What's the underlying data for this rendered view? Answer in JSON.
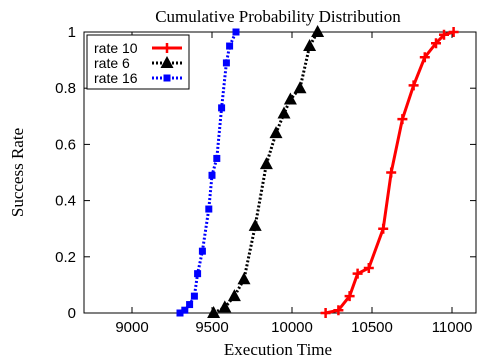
{
  "chart_data": {
    "type": "line",
    "title": "Cumulative Probability Distribution",
    "xlabel": "Execution Time",
    "ylabel": "Success Rate",
    "xlim": [
      8700,
      11150
    ],
    "ylim": [
      0,
      1
    ],
    "xticks": [
      9000,
      9500,
      10000,
      10500,
      11000
    ],
    "yticks": [
      0,
      0.2,
      0.4,
      0.6,
      0.8,
      1
    ],
    "legend_position": "top-left",
    "series": [
      {
        "name": "rate 10",
        "color": "#ff0000",
        "dash": "solid",
        "marker": "plus",
        "x": [
          10210,
          10290,
          10360,
          10410,
          10480,
          10570,
          10620,
          10690,
          10760,
          10830,
          10900,
          10950,
          11010
        ],
        "y": [
          0.0,
          0.01,
          0.06,
          0.14,
          0.16,
          0.3,
          0.5,
          0.69,
          0.81,
          0.91,
          0.96,
          0.99,
          1.0
        ]
      },
      {
        "name": "rate  6",
        "color": "#000000",
        "dash": "dotted",
        "marker": "triangle",
        "x": [
          9510,
          9580,
          9640,
          9700,
          9770,
          9840,
          9900,
          9950,
          9990,
          10050,
          10110,
          10160
        ],
        "y": [
          0.0,
          0.02,
          0.06,
          0.12,
          0.31,
          0.53,
          0.64,
          0.71,
          0.76,
          0.8,
          0.95,
          1.0
        ]
      },
      {
        "name": "rate 16",
        "color": "#0000ff",
        "dash": "dotted",
        "marker": "square",
        "x": [
          9300,
          9330,
          9360,
          9390,
          9410,
          9440,
          9480,
          9500,
          9530,
          9560,
          9590,
          9610,
          9650
        ],
        "y": [
          0.0,
          0.01,
          0.03,
          0.06,
          0.14,
          0.22,
          0.37,
          0.49,
          0.55,
          0.73,
          0.89,
          0.95,
          1.0
        ]
      }
    ]
  }
}
